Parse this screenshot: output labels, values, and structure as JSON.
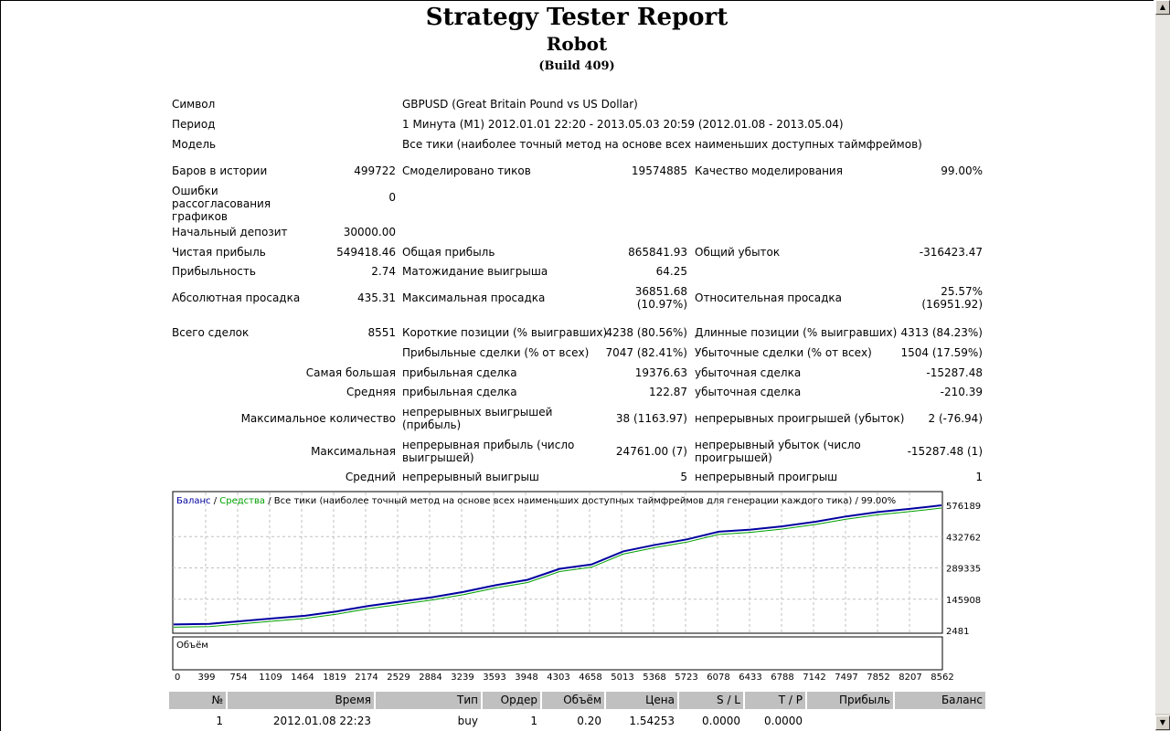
{
  "header": {
    "title": "Strategy Tester Report",
    "expert": "Robot",
    "build": "(Build 409)"
  },
  "info": {
    "symbol_label": "Символ",
    "symbol_value": "GBPUSD (Great Britain Pound vs US Dollar)",
    "period_label": "Период",
    "period_value": "1 Минута (M1) 2012.01.01 22:20 - 2013.05.03 20:59 (2012.01.08 - 2013.05.04)",
    "model_label": "Модель",
    "model_value": "Все тики (наиболее точный метод на основе всех наименьших доступных таймфреймов)"
  },
  "stats": {
    "bars_label": "Баров в истории",
    "bars_value": "499722",
    "ticks_label": "Смоделировано тиков",
    "ticks_value": "19574885",
    "quality_label": "Качество моделирования",
    "quality_value": "99.00%",
    "errors_label": "Ошибки рассогласования графиков",
    "errors_value": "0",
    "deposit_label": "Начальный депозит",
    "deposit_value": "30000.00",
    "net_label": "Чистая прибыль",
    "net_value": "549418.46",
    "gross_profit_label": "Общая прибыль",
    "gross_profit_value": "865841.93",
    "gross_loss_label": "Общий убыток",
    "gross_loss_value": "-316423.47",
    "pf_label": "Прибыльность",
    "pf_value": "2.74",
    "expected_label": "Матожидание выигрыша",
    "expected_value": "64.25",
    "abs_dd_label": "Абсолютная просадка",
    "abs_dd_value": "435.31",
    "max_dd_label": "Максимальная просадка",
    "max_dd_value": "36851.68 (10.97%)",
    "rel_dd_label": "Относительная просадка",
    "rel_dd_value": "25.57% (16951.92)",
    "total_label": "Всего сделок",
    "total_value": "8551",
    "short_label": "Короткие позиции (% выигравших)",
    "short_value": "4238 (80.56%)",
    "long_label": "Длинные позиции (% выигравших)",
    "long_value": "4313 (84.23%)",
    "profit_trades_label": "Прибыльные сделки (% от всех)",
    "profit_trades_value": "7047 (82.41%)",
    "loss_trades_label": "Убыточные сделки (% от всех)",
    "loss_trades_value": "1504 (17.59%)",
    "largest_label": "Самая большая",
    "largest_profit_label": "прибыльная сделка",
    "largest_profit_value": "19376.63",
    "largest_loss_label": "убыточная сделка",
    "largest_loss_value": "-15287.48",
    "average_label": "Средняя",
    "average_profit_label": "прибыльная сделка",
    "average_profit_value": "122.87",
    "average_loss_label": "убыточная сделка",
    "average_loss_value": "-210.39",
    "maxcount_label": "Максимальное количество",
    "maxcount_wins_label": "непрерывных выигрышей (прибыль)",
    "maxcount_wins_value": "38 (1163.97)",
    "maxcount_losses_label": "непрерывных проигрышей (убыток)",
    "maxcount_losses_value": "2 (-76.94)",
    "maximal_label": "Максимальная",
    "maximal_profit_label": "непрерывная прибыль (число выигрышей)",
    "maximal_profit_value": "24761.00 (7)",
    "maximal_loss_label": "непрерывный убыток (число проигрышей)",
    "maximal_loss_value": "-15287.48 (1)",
    "avgcons_label": "Средний",
    "avgcons_wins_label": "непрерывный выигрыш",
    "avgcons_wins_value": "5",
    "avgcons_losses_label": "непрерывный проигрыш",
    "avgcons_losses_value": "1"
  },
  "chart_data": {
    "type": "line",
    "legend_balance": "Баланс",
    "legend_sep": " / ",
    "legend_equity": "Средства",
    "legend_rest": " / Все тики (наиболее точный метод на основе всех наименьших доступных таймфреймов для генерации каждого тика) / 99.00%",
    "volume_label": "Объём",
    "y_ticks": [
      "576189",
      "432762",
      "289335",
      "145908",
      "2481"
    ],
    "y_tick_values": [
      576189,
      432762,
      289335,
      145908,
      2481
    ],
    "x_ticks": [
      "0",
      "399",
      "754",
      "1109",
      "1464",
      "1819",
      "2174",
      "2529",
      "2884",
      "3239",
      "3593",
      "3948",
      "4303",
      "4658",
      "5013",
      "5368",
      "5723",
      "6078",
      "6433",
      "6788",
      "7142",
      "7497",
      "7852",
      "8207",
      "8562"
    ],
    "xlim": [
      0,
      8562
    ],
    "ylim": [
      2481,
      576189
    ],
    "balance_x": [
      0,
      399,
      754,
      1109,
      1464,
      1819,
      2174,
      2529,
      2884,
      3239,
      3593,
      3948,
      4303,
      4658,
      5013,
      5368,
      5723,
      6078,
      6433,
      6788,
      7142,
      7497,
      7852,
      8207,
      8562
    ],
    "balance_y": [
      30000,
      33000,
      45000,
      58000,
      70000,
      90000,
      115000,
      135000,
      155000,
      180000,
      210000,
      235000,
      285000,
      305000,
      365000,
      395000,
      420000,
      455000,
      465000,
      480000,
      500000,
      525000,
      545000,
      560000,
      576189
    ],
    "colors": {
      "balance": "#0000a0",
      "equity": "#00a000",
      "grid": "#c0c0c0"
    }
  },
  "trades": {
    "headers": [
      "№",
      "Время",
      "Тип",
      "Ордер",
      "Объём",
      "Цена",
      "S / L",
      "T / P",
      "Прибыль",
      "Баланс"
    ],
    "rows": [
      [
        "1",
        "2012.01.08 22:23",
        "buy",
        "1",
        "0.20",
        "1.54253",
        "0.0000",
        "0.0000",
        "",
        ""
      ]
    ]
  }
}
